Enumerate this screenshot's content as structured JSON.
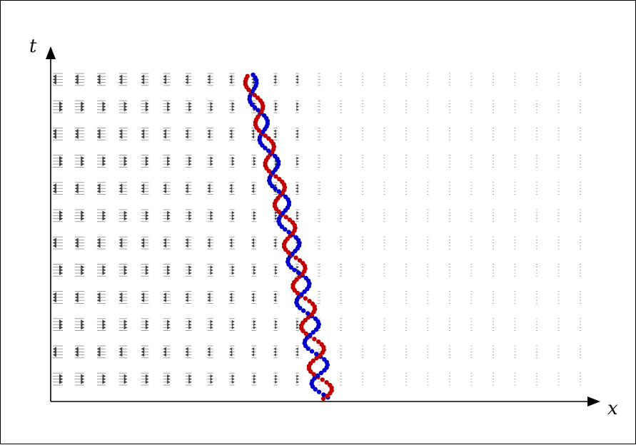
{
  "axes": {
    "x_label": "x",
    "t_label": "t"
  },
  "field": {
    "arrow_color": "#444444",
    "dash_color": "#9a9a9a"
  },
  "particles": {
    "red_color": "#c00000",
    "blue_color": "#0000c8"
  }
}
